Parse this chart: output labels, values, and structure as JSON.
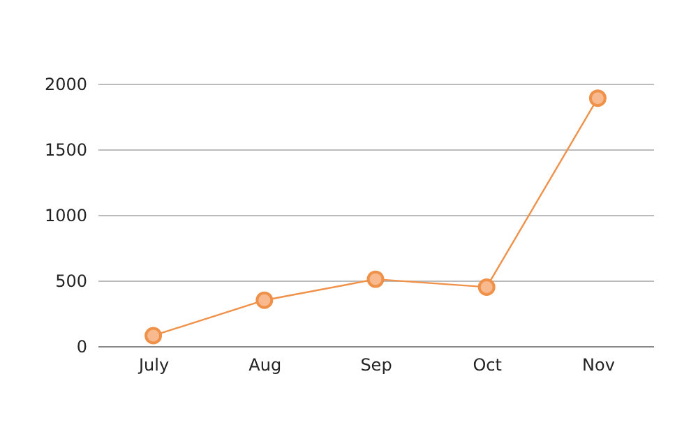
{
  "chart_data": {
    "type": "line",
    "categories": [
      "July",
      "Aug",
      "Sep",
      "Oct",
      "Nov"
    ],
    "series": [
      {
        "color": "#f0914a",
        "values": [
          80,
          350,
          510,
          450,
          1890
        ]
      }
    ],
    "ylim": [
      0,
      2000
    ],
    "yticks": [
      0,
      500,
      1000,
      1500,
      2000
    ],
    "grid": "y",
    "marker": "circle"
  }
}
